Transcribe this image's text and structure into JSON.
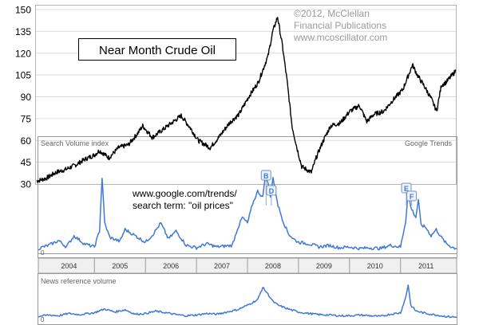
{
  "chart_data": [
    {
      "type": "line",
      "title": "Near Month Crude Oil",
      "copyright_lines": [
        "©2012, McClellan",
        "Financial Publications",
        "www.mcoscillator.com"
      ],
      "ylim": [
        30,
        150
      ],
      "y_ticks": [
        30,
        45,
        60,
        75,
        90,
        105,
        120,
        135,
        150
      ],
      "x_range": [
        2003.5,
        2012.2
      ],
      "grid": true,
      "series": [
        {
          "x": [
            2003.5,
            2003.7,
            2003.9,
            2004.1,
            2004.3,
            2004.5,
            2004.7,
            2004.8,
            2005.0,
            2005.2,
            2005.4,
            2005.6,
            2005.7,
            2005.9,
            2006.1,
            2006.3,
            2006.5,
            2006.7,
            2006.85,
            2007.0,
            2007.1,
            2007.3,
            2007.5,
            2007.7,
            2007.9,
            2008.1,
            2008.3,
            2008.4,
            2008.5,
            2008.6,
            2008.7,
            2008.8,
            2008.9,
            2009.0,
            2009.1,
            2009.2,
            2009.3,
            2009.45,
            2009.6,
            2009.8,
            2010.0,
            2010.2,
            2010.35,
            2010.5,
            2010.7,
            2010.9,
            2011.1,
            2011.3,
            2011.4,
            2011.55,
            2011.7,
            2011.8,
            2011.9,
            2012.0,
            2012.1,
            2012.2
          ],
          "y": [
            32,
            34,
            38,
            40,
            43,
            47,
            50,
            53,
            48,
            55,
            57,
            65,
            70,
            62,
            67,
            72,
            77,
            68,
            60,
            57,
            55,
            63,
            72,
            78,
            90,
            100,
            118,
            135,
            145,
            125,
            100,
            70,
            55,
            42,
            40,
            38,
            48,
            60,
            70,
            72,
            80,
            84,
            73,
            78,
            80,
            88,
            95,
            112,
            105,
            97,
            88,
            80,
            98,
            100,
            104,
            108
          ]
        }
      ]
    },
    {
      "type": "line",
      "title": "Search Volume index",
      "brand": "Google Trends",
      "annotation_lines": [
        "www.google.com/trends/",
        "search term: \"oil prices\""
      ],
      "x_ticks": [
        "2004",
        "2005",
        "2006",
        "2007",
        "2008",
        "2009",
        "2010",
        "2011"
      ],
      "y_ticks": [
        0
      ],
      "markers": [
        {
          "label": "B",
          "x": 2008.38
        },
        {
          "label": "D",
          "x": 2008.42
        },
        {
          "label": "E",
          "x": 2011.13
        },
        {
          "label": "F",
          "x": 2011.17
        }
      ],
      "series": [
        {
          "x": [
            2003.9,
            2004.1,
            2004.3,
            2004.45,
            2004.6,
            2004.8,
            2005.0,
            2005.1,
            2005.15,
            2005.2,
            2005.3,
            2005.5,
            2005.6,
            2005.8,
            2006.0,
            2006.15,
            2006.3,
            2006.45,
            2006.6,
            2006.8,
            2007.0,
            2007.2,
            2007.4,
            2007.7,
            2007.8,
            2007.9,
            2008.0,
            2008.1,
            2008.2,
            2008.3,
            2008.35,
            2008.4,
            2008.45,
            2008.5,
            2008.6,
            2008.7,
            2008.8,
            2008.9,
            2009.0,
            2009.2,
            2009.4,
            2009.6,
            2009.8,
            2010.0,
            2010.2,
            2010.4,
            2010.6,
            2010.8,
            2011.0,
            2011.1,
            2011.15,
            2011.2,
            2011.3,
            2011.35,
            2011.4,
            2011.5,
            2011.6,
            2011.7,
            2011.8,
            2011.9,
            2012.0,
            2012.1
          ],
          "y": [
            6,
            10,
            16,
            8,
            22,
            12,
            8,
            28,
            95,
            38,
            20,
            15,
            30,
            22,
            14,
            24,
            38,
            18,
            28,
            10,
            7,
            12,
            8,
            10,
            30,
            45,
            38,
            62,
            78,
            70,
            100,
            88,
            72,
            95,
            60,
            40,
            25,
            18,
            14,
            12,
            8,
            10,
            7,
            8,
            6,
            7,
            6,
            10,
            8,
            40,
            78,
            58,
            45,
            68,
            36,
            32,
            22,
            30,
            20,
            12,
            8,
            6
          ]
        }
      ]
    },
    {
      "type": "line",
      "title": "News reference volume",
      "y_ticks": [
        0
      ],
      "series": [
        {
          "x": [
            2003.9,
            2004.1,
            2004.3,
            2004.5,
            2004.7,
            2005.0,
            2005.2,
            2005.4,
            2005.6,
            2005.8,
            2006.0,
            2006.2,
            2006.4,
            2006.6,
            2006.8,
            2007.0,
            2007.2,
            2007.4,
            2007.6,
            2007.8,
            2008.0,
            2008.2,
            2008.3,
            2008.4,
            2008.5,
            2008.6,
            2008.8,
            2009.0,
            2009.2,
            2009.4,
            2009.6,
            2009.8,
            2010.0,
            2010.2,
            2010.4,
            2010.6,
            2010.8,
            2011.0,
            2011.1,
            2011.15,
            2011.2,
            2011.3,
            2011.5,
            2011.7,
            2011.9,
            2012.1
          ],
          "y": [
            10,
            14,
            12,
            18,
            15,
            20,
            30,
            22,
            28,
            16,
            18,
            24,
            20,
            15,
            12,
            14,
            18,
            16,
            22,
            28,
            40,
            55,
            88,
            70,
            50,
            40,
            30,
            22,
            18,
            15,
            14,
            12,
            12,
            14,
            12,
            10,
            16,
            20,
            60,
            95,
            40,
            25,
            18,
            14,
            10,
            8
          ]
        }
      ]
    }
  ],
  "colors": {
    "price": "#000000",
    "search": "#3f78d8",
    "panel_border": "#9a9a9a",
    "grid": "#dcdcdc"
  }
}
